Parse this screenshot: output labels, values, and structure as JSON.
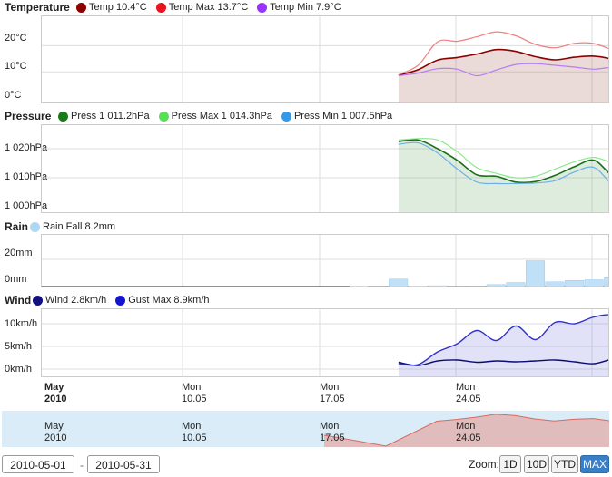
{
  "temperature": {
    "title": "Temperature",
    "legend": [
      {
        "label": "Temp 10.4°C",
        "color": "#8b0000"
      },
      {
        "label": "Temp Max 13.7°C",
        "color": "#e8141d"
      },
      {
        "label": "Temp Min 7.9°C",
        "color": "#9b30ff"
      }
    ],
    "yticks": [
      "20°C",
      "10°C",
      "0°C"
    ]
  },
  "pressure": {
    "title": "Pressure",
    "legend": [
      {
        "label": "Press 1 011.2hPa",
        "color": "#1a7a1a"
      },
      {
        "label": "Press Max 1 014.3hPa",
        "color": "#55e055"
      },
      {
        "label": "Press Min 1 007.5hPa",
        "color": "#3399e6"
      }
    ],
    "yticks": [
      "1 020hPa",
      "1 010hPa",
      "1 000hPa"
    ]
  },
  "rain": {
    "title": "Rain",
    "legend": [
      {
        "label": "Rain Fall 8.2mm",
        "color": "#add8f5"
      }
    ],
    "yticks": [
      "20mm",
      "0mm"
    ]
  },
  "wind": {
    "title": "Wind",
    "legend": [
      {
        "label": "Wind 2.8km/h",
        "color": "#101080"
      },
      {
        "label": "Gust Max 8.9km/h",
        "color": "#1515d0"
      }
    ],
    "yticks": [
      "10km/h",
      "5km/h",
      "0km/h"
    ]
  },
  "xaxis": [
    {
      "line1": "May",
      "line2": "2010",
      "bold": true
    },
    {
      "line1": "Mon",
      "line2": "10.05",
      "bold": false
    },
    {
      "line1": "Mon",
      "line2": "17.05",
      "bold": false
    },
    {
      "line1": "Mon",
      "line2": "24.05",
      "bold": false
    }
  ],
  "navigator": [
    {
      "line1": "May",
      "line2": "2010"
    },
    {
      "line1": "Mon",
      "line2": "10.05"
    },
    {
      "line1": "Mon",
      "line2": "17.05"
    },
    {
      "line1": "Mon",
      "line2": "24.05"
    }
  ],
  "range": {
    "from": "2010-05-01",
    "to": "2010-05-31",
    "separator": "-"
  },
  "zoom": {
    "label": "Zoom:",
    "buttons": [
      "1D",
      "10D",
      "YTD",
      "MAX"
    ],
    "active": "MAX"
  },
  "chart_data": [
    {
      "type": "area",
      "title": "Temperature",
      "x": [
        "2010-05-19",
        "2010-05-20",
        "2010-05-21",
        "2010-05-22",
        "2010-05-23",
        "2010-05-24",
        "2010-05-25",
        "2010-05-26",
        "2010-05-27",
        "2010-05-28",
        "2010-05-29",
        "2010-05-30",
        "2010-05-31"
      ],
      "series": [
        {
          "name": "Temp",
          "values": [
            8.7,
            10.8,
            14.5,
            15.5,
            16.8,
            18.5,
            17.8,
            15.8,
            14.6,
            15.6,
            16.0,
            14.5,
            10.4
          ]
        },
        {
          "name": "Temp Max",
          "values": [
            8.9,
            12.5,
            21.5,
            21.7,
            23.4,
            25.3,
            23.8,
            20.5,
            19.2,
            20.9,
            20.8,
            18.0,
            13.7
          ]
        },
        {
          "name": "Temp Min",
          "values": [
            8.5,
            9.5,
            11.2,
            11.0,
            8.5,
            10.7,
            12.8,
            13.1,
            12.5,
            11.8,
            11.0,
            11.5,
            7.9
          ]
        }
      ],
      "ylim": [
        0,
        30
      ]
    },
    {
      "type": "area",
      "title": "Pressure",
      "x": [
        "2010-05-19",
        "2010-05-20",
        "2010-05-21",
        "2010-05-22",
        "2010-05-23",
        "2010-05-24",
        "2010-05-25",
        "2010-05-26",
        "2010-05-27",
        "2010-05-28",
        "2010-05-29",
        "2010-05-30",
        "2010-05-31"
      ],
      "series": [
        {
          "name": "Press",
          "values": [
            1022.5,
            1023.0,
            1020.0,
            1016.0,
            1011.0,
            1010.5,
            1008.5,
            1008.7,
            1010.8,
            1013.8,
            1016.0,
            1010.5,
            1011.2
          ]
        },
        {
          "name": "Press Max",
          "values": [
            1023.0,
            1023.5,
            1023.0,
            1019.0,
            1013.5,
            1011.5,
            1010.0,
            1010.5,
            1013.0,
            1015.5,
            1017.0,
            1015.0,
            1014.3
          ]
        },
        {
          "name": "Press Min",
          "values": [
            1021.5,
            1022.0,
            1018.5,
            1013.0,
            1008.5,
            1008.0,
            1008.0,
            1008.2,
            1009.0,
            1012.0,
            1013.5,
            1007.5,
            1007.5
          ]
        }
      ],
      "ylim": [
        996,
        1030
      ]
    },
    {
      "type": "bar",
      "title": "Rain",
      "x": [
        "2010-05-17",
        "2010-05-18",
        "2010-05-19",
        "2010-05-20",
        "2010-05-21",
        "2010-05-22",
        "2010-05-23",
        "2010-05-24",
        "2010-05-25",
        "2010-05-26",
        "2010-05-27",
        "2010-05-28",
        "2010-05-29",
        "2010-05-30",
        "2010-05-31"
      ],
      "series": [
        {
          "name": "Rain Fall",
          "values": [
            0.3,
            0,
            5.5,
            0.3,
            0.6,
            0,
            0,
            1.5,
            3.0,
            19.0,
            3.5,
            4.5,
            5.0,
            6.5,
            8.2
          ]
        }
      ],
      "ylim": [
        0,
        30
      ]
    },
    {
      "type": "area",
      "title": "Wind",
      "x": [
        "2010-05-19",
        "2010-05-20",
        "2010-05-21",
        "2010-05-22",
        "2010-05-23",
        "2010-05-24",
        "2010-05-25",
        "2010-05-26",
        "2010-05-27",
        "2010-05-28",
        "2010-05-29",
        "2010-05-30",
        "2010-05-31"
      ],
      "series": [
        {
          "name": "Wind",
          "values": [
            1.5,
            0.8,
            1.8,
            2.0,
            1.5,
            1.8,
            1.6,
            1.8,
            2.0,
            1.6,
            1.2,
            2.3,
            2.8
          ]
        },
        {
          "name": "Gust Max",
          "values": [
            1.2,
            1.0,
            3.8,
            5.6,
            8.5,
            6.3,
            9.5,
            6.5,
            10.3,
            10.0,
            11.5,
            11.8,
            8.9
          ]
        }
      ],
      "ylim": [
        0,
        12
      ]
    }
  ]
}
